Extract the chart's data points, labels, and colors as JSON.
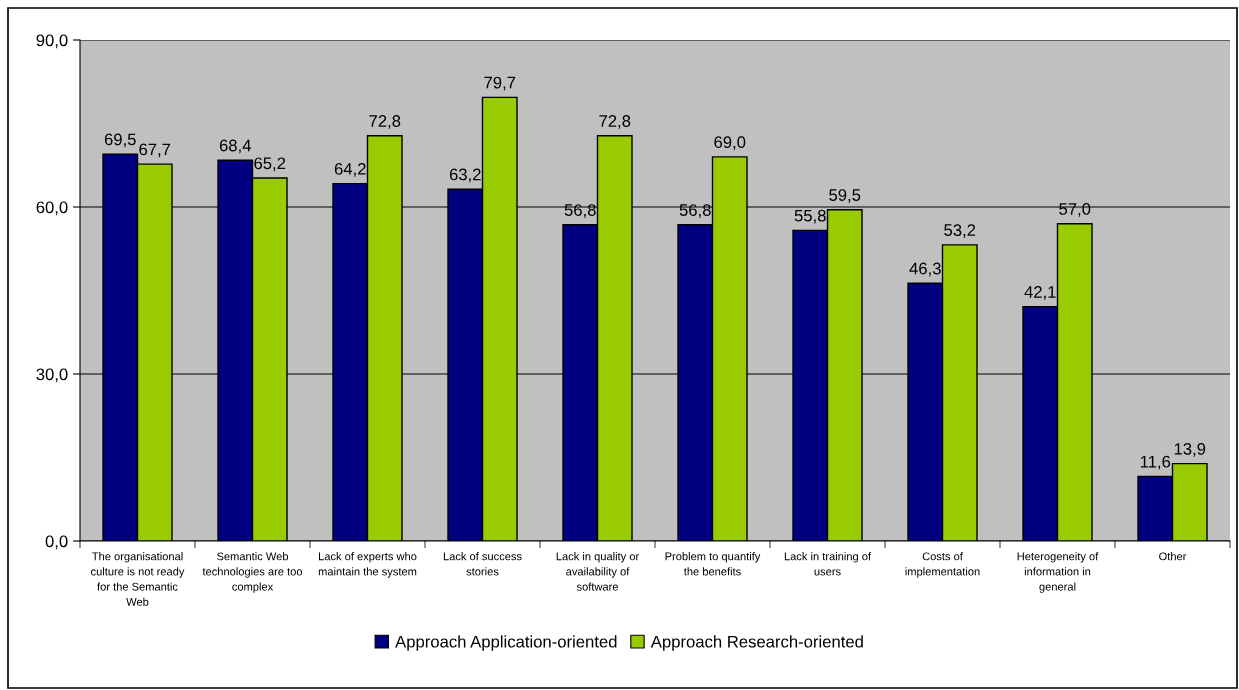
{
  "chart_data": {
    "type": "bar",
    "categories": [
      "The organisational culture is not ready for the Semantic Web",
      "Semantic Web technologies are too complex",
      "Lack of experts who maintain the system",
      "Lack of success stories",
      "Lack in quality or availability of software",
      "Problem to quantify the benefits",
      "Lack in training of users",
      "Costs of implementation",
      "Heterogeneity of information in general",
      "Other"
    ],
    "series": [
      {
        "name": "Approach Application-oriented",
        "color": "#000080",
        "values": [
          69.5,
          68.4,
          64.2,
          63.2,
          56.8,
          56.8,
          55.8,
          46.3,
          42.1,
          11.6
        ],
        "value_labels": [
          "69,5",
          "68,4",
          "64,2",
          "63,2",
          "56,8",
          "56,8",
          "55,8",
          "46,3",
          "42,1",
          "11,6"
        ]
      },
      {
        "name": "Approach Research-oriented",
        "color": "#99cc00",
        "values": [
          67.7,
          65.2,
          72.8,
          79.7,
          72.8,
          69.0,
          59.5,
          53.2,
          57.0,
          13.9
        ],
        "value_labels": [
          "67,7",
          "65,2",
          "72,8",
          "79,7",
          "72,8",
          "69,0",
          "59,5",
          "53,2",
          "57,0",
          "13,9"
        ]
      }
    ],
    "ylim": [
      0,
      90
    ],
    "yticks": [
      {
        "value": 0,
        "label": "0,0"
      },
      {
        "value": 30,
        "label": "30,0"
      },
      {
        "value": 60,
        "label": "60,0"
      },
      {
        "value": 90,
        "label": "90,0"
      }
    ],
    "grid": "y",
    "legend": "bottom"
  }
}
